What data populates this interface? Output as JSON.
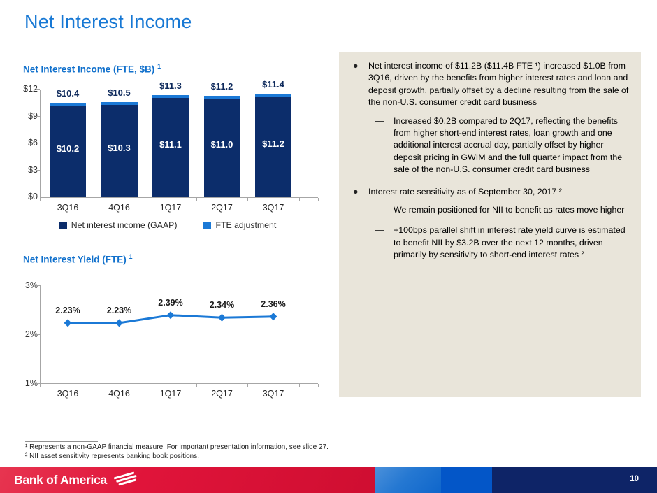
{
  "slide": {
    "title": "Net Interest Income",
    "page_number": "10",
    "brand_name": "Bank of America"
  },
  "charts": {
    "bar_title": "Net Interest Income (FTE, $B)",
    "bar_title_sup": "1",
    "line_title": "Net Interest Yield (FTE)",
    "line_title_sup": "1"
  },
  "chart_data": [
    {
      "type": "bar",
      "stacked": true,
      "title": "Net Interest Income (FTE, $B) 1",
      "categories": [
        "3Q16",
        "4Q16",
        "1Q17",
        "2Q17",
        "3Q17"
      ],
      "series": [
        {
          "name": "Net interest income (GAAP)",
          "color": "#0c2d6b",
          "values": [
            10.2,
            10.3,
            11.1,
            11.0,
            11.2
          ],
          "labels": [
            "$10.2",
            "$10.3",
            "$11.1",
            "$11.0",
            "$11.2"
          ]
        },
        {
          "name": "FTE adjustment",
          "color": "#1b79d6",
          "values": [
            0.2,
            0.2,
            0.2,
            0.2,
            0.2
          ]
        }
      ],
      "totals": [
        10.4,
        10.5,
        11.3,
        11.2,
        11.4
      ],
      "total_labels": [
        "$10.4",
        "$10.5",
        "$11.3",
        "$11.2",
        "$11.4"
      ],
      "y_ticks": [
        "$0",
        "$3",
        "$6",
        "$9",
        "$12"
      ],
      "ylim": [
        0,
        12
      ],
      "grid": false,
      "legend_position": "bottom"
    },
    {
      "type": "line",
      "title": "Net Interest Yield (FTE) 1",
      "categories": [
        "3Q16",
        "4Q16",
        "1Q17",
        "2Q17",
        "3Q17"
      ],
      "values": [
        2.23,
        2.23,
        2.39,
        2.34,
        2.36
      ],
      "point_labels": [
        "2.23%",
        "2.23%",
        "2.39%",
        "2.34%",
        "2.36%"
      ],
      "y_ticks": [
        "1%",
        "2%",
        "3%"
      ],
      "ylim": [
        1,
        3
      ],
      "grid": false,
      "color": "#1b79d6",
      "marker": "diamond"
    }
  ],
  "panel": {
    "bullets": [
      {
        "text": "Net interest income of $11.2B ($11.4B FTE ¹) increased $1.0B from 3Q16, driven by the benefits from higher interest rates and loan and deposit growth, partially offset by a decline resulting from the sale of the non-U.S. consumer credit card business",
        "subs": [
          "Increased $0.2B compared to 2Q17, reflecting the benefits from higher short-end interest rates, loan growth and one additional interest accrual day, partially offset by higher deposit pricing in GWIM and the full quarter impact from the sale of the non-U.S. consumer credit card business"
        ]
      },
      {
        "text": "Interest rate sensitivity as of September 30, 2017 ²",
        "subs": [
          "We remain positioned for NII to benefit as rates move higher",
          "+100bps parallel shift in interest rate yield curve is estimated to benefit NII by $3.2B over the next 12 months, driven primarily by sensitivity to short-end interest rates ²"
        ]
      }
    ]
  },
  "footnotes": [
    "¹ Represents a non-GAAP financial measure. For important presentation information, see slide 27.",
    "² NII asset sensitivity represents banking book positions."
  ],
  "colors": {
    "title_blue": "#1778d4",
    "subtitle_blue": "#1070cc",
    "navy": "#0c2d6b",
    "bright_blue": "#1b79d6",
    "panel_beige": "#e9e5da",
    "brand_red": "#e0143a",
    "footer_blue": "#0356c8",
    "footer_navy": "#0e2467",
    "axis_gray": "#a6a6a6"
  }
}
